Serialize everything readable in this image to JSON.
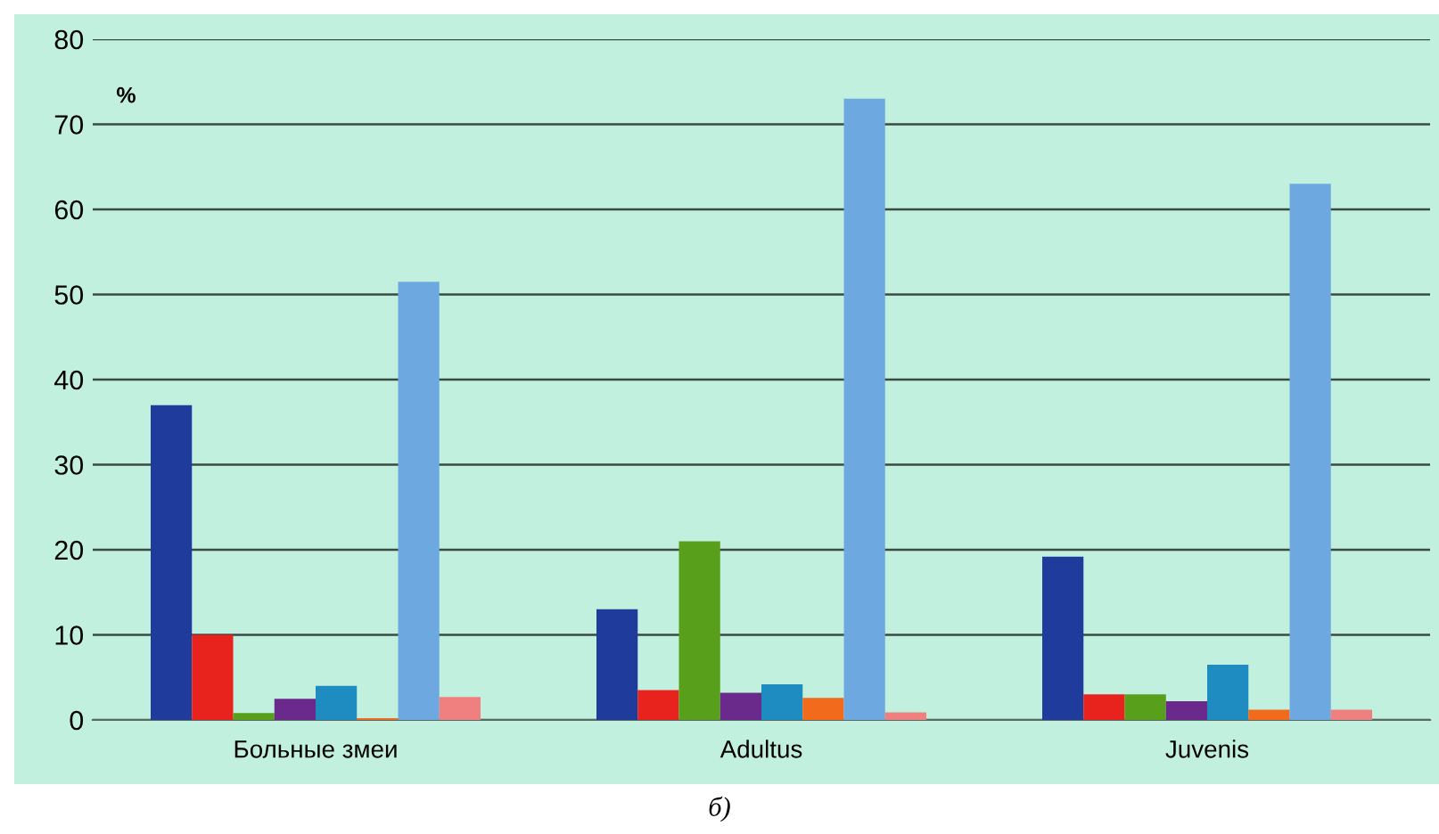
{
  "chart_data": {
    "type": "bar",
    "ylabel": "%",
    "categories": [
      "Больные змеи",
      "Adultus",
      "Juvenis"
    ],
    "series": [
      {
        "color": "#1f3c9c",
        "values": [
          37,
          13,
          19.2
        ]
      },
      {
        "color": "#e8221c",
        "values": [
          10,
          3.5,
          3
        ]
      },
      {
        "color": "#58a01c",
        "values": [
          0.8,
          21,
          3
        ]
      },
      {
        "color": "#6a2a8c",
        "values": [
          2.5,
          3.2,
          2.2
        ]
      },
      {
        "color": "#1e8cc0",
        "values": [
          4,
          4.2,
          6.5
        ]
      },
      {
        "color": "#f26a1c",
        "values": [
          0.2,
          2.6,
          1.2
        ]
      },
      {
        "color": "#6ea8e0",
        "values": [
          51.5,
          73,
          63
        ]
      },
      {
        "color": "#f08080",
        "values": [
          2.7,
          0.9,
          1.2
        ]
      }
    ],
    "ylim": [
      0,
      80
    ],
    "yticks": [
      0,
      10,
      20,
      30,
      40,
      50,
      60,
      70,
      80
    ],
    "grid": "y",
    "annotations": [
      "б)"
    ]
  }
}
